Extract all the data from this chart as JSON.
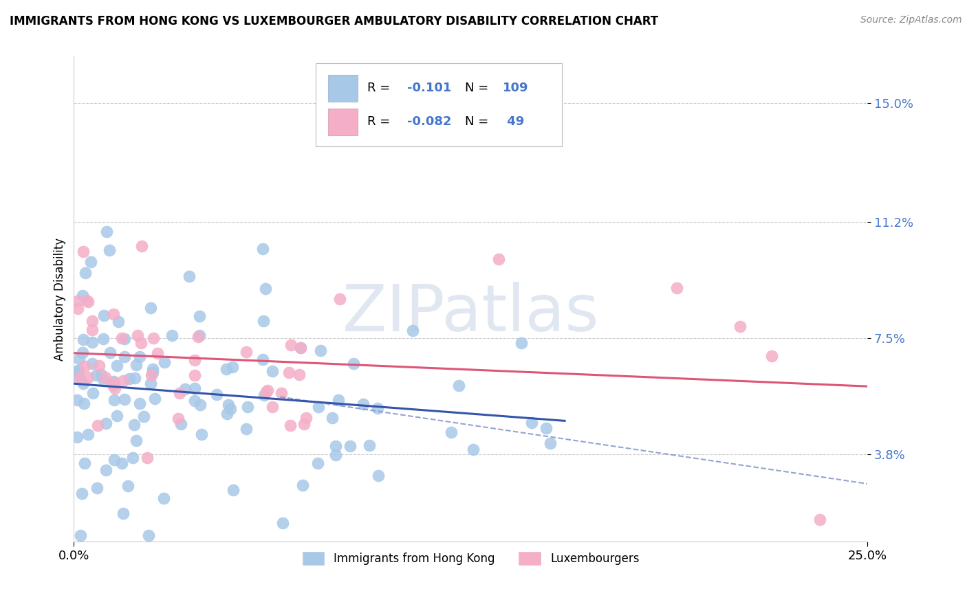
{
  "title": "IMMIGRANTS FROM HONG KONG VS LUXEMBOURGER AMBULATORY DISABILITY CORRELATION CHART",
  "source": "Source: ZipAtlas.com",
  "ylabel": "Ambulatory Disability",
  "xmin": 0.0,
  "xmax": 0.25,
  "ymin": 0.01,
  "ymax": 0.165,
  "yticks": [
    0.038,
    0.075,
    0.112,
    0.15
  ],
  "ytick_labels": [
    "3.8%",
    "7.5%",
    "11.2%",
    "15.0%"
  ],
  "xticks": [
    0.0,
    0.25
  ],
  "xtick_labels": [
    "0.0%",
    "25.0%"
  ],
  "watermark_text": "ZIPatlas",
  "series1_color": "#a8c8e8",
  "series2_color": "#f4aec8",
  "series1_edge_color": "#6699cc",
  "series2_edge_color": "#dd88aa",
  "series1_line_color": "#3355aa",
  "series2_line_color": "#dd5577",
  "dashed_line_color": "#8899cc",
  "series1_name": "Immigrants from Hong Kong",
  "series2_name": "Luxembourgers",
  "grid_color": "#cccccc",
  "title_fontsize": 12,
  "source_fontsize": 10,
  "tick_label_color": "#4477cc",
  "r1": "-0.101",
  "n1": "109",
  "r2": "-0.082",
  "n2": "49"
}
